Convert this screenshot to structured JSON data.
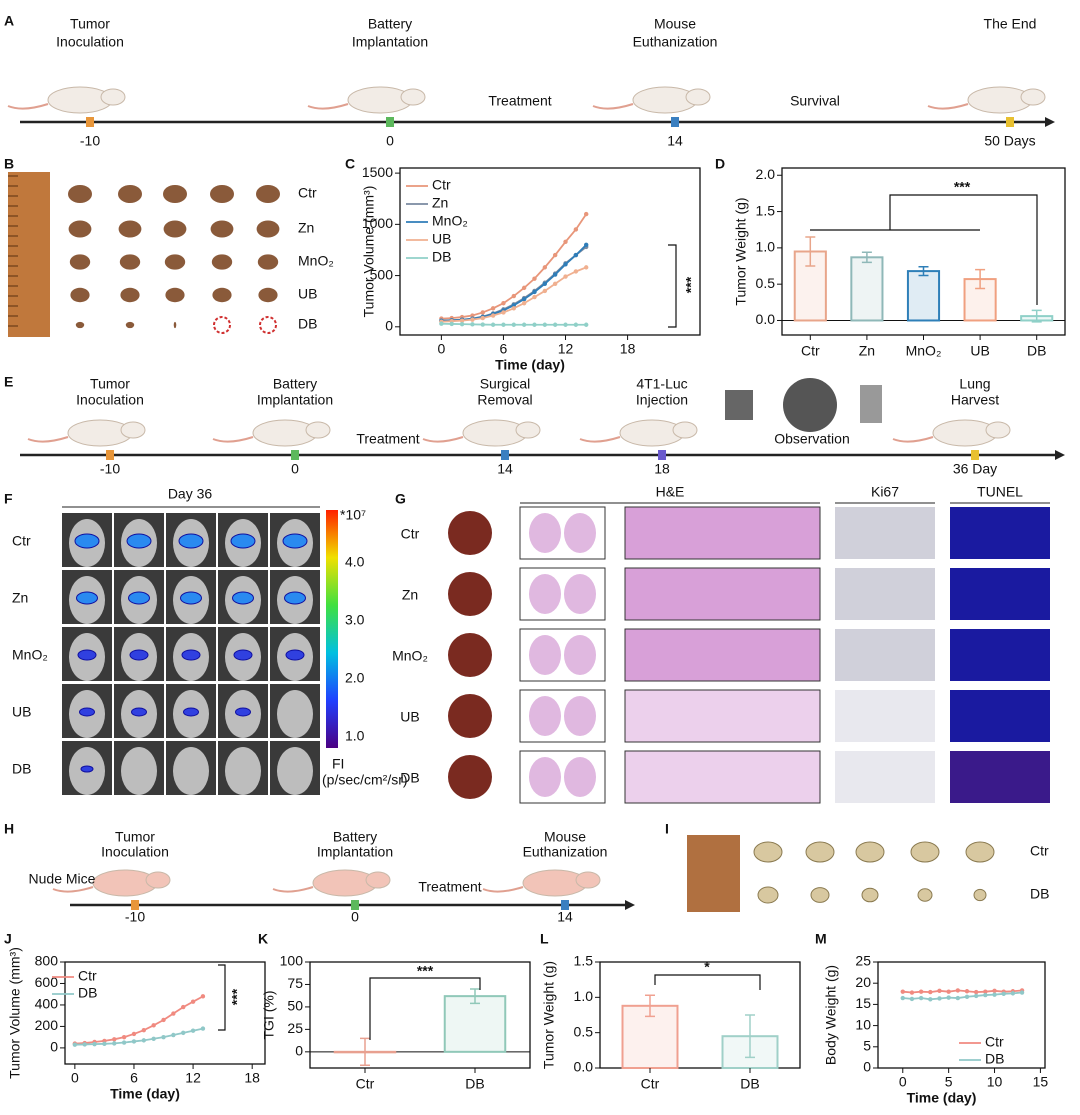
{
  "panels": {
    "A": {
      "letter": "A",
      "events": [
        {
          "title": [
            "Tumor",
            "Inoculation"
          ],
          "tick": "-10"
        },
        {
          "title": [
            "Battery",
            "Implantation"
          ],
          "tick": "0"
        },
        {
          "title": [
            "Mouse",
            "Euthanization"
          ],
          "tick": "14"
        },
        {
          "title": [
            "The End"
          ],
          "tick": "50 Days"
        }
      ],
      "phases": [
        "Treatment",
        "Survival"
      ]
    },
    "B": {
      "letter": "B",
      "rows": [
        "Ctr",
        "Zn",
        "MnO₂",
        "UB",
        "DB"
      ]
    },
    "E": {
      "letter": "E",
      "events": [
        {
          "title": [
            "Tumor",
            "Inoculation"
          ],
          "tick": "-10"
        },
        {
          "title": [
            "Battery",
            "Implantation"
          ],
          "tick": "0"
        },
        {
          "title": [
            "Surgical",
            "Removal"
          ],
          "tick": "14"
        },
        {
          "title": [
            "4T1-Luc",
            "Injection"
          ],
          "tick": "18"
        },
        {
          "title": [
            "Lung",
            "Harvest"
          ],
          "tick": "36 Day"
        }
      ],
      "phases": [
        "Treatment",
        "Observation"
      ]
    },
    "F": {
      "letter": "F",
      "title": "Day 36",
      "rows": [
        "Ctr",
        "Zn",
        "MnO₂",
        "UB",
        "DB"
      ],
      "colorbar": {
        "exponent": "*10⁷",
        "ticks": [
          "4.0",
          "3.0",
          "2.0",
          "1.0"
        ],
        "label": "FI",
        "unit": "(p/sec/cm²/sr)"
      }
    },
    "G": {
      "letter": "G",
      "columns": [
        "H&E",
        "Ki67",
        "TUNEL"
      ],
      "rows": [
        "Ctr",
        "Zn",
        "MnO₂",
        "UB",
        "DB"
      ]
    },
    "H": {
      "letter": "H",
      "subject": "Nude Mice",
      "events": [
        {
          "title": [
            "Tumor",
            "Inoculation"
          ],
          "tick": "-10"
        },
        {
          "title": [
            "Battery",
            "Implantation"
          ],
          "tick": "0"
        },
        {
          "title": [
            "Mouse",
            "Euthanization"
          ],
          "tick": "14"
        }
      ],
      "phases": [
        "Treatment"
      ]
    },
    "I": {
      "letter": "I",
      "rows": [
        "Ctr",
        "DB"
      ]
    }
  },
  "chart_data": [
    {
      "panel": "C",
      "type": "line",
      "xlabel": "Time (day)",
      "ylabel": "Tumor Volume (mm³)",
      "x": [
        0,
        1,
        2,
        3,
        4,
        5,
        6,
        7,
        8,
        9,
        10,
        11,
        12,
        13,
        14
      ],
      "series": [
        {
          "name": "Ctr",
          "color": "#e8967a",
          "values": [
            80,
            85,
            95,
            110,
            140,
            180,
            230,
            300,
            380,
            470,
            580,
            700,
            830,
            950,
            1100
          ]
        },
        {
          "name": "Zn",
          "color": "#7a8aa0",
          "values": [
            60,
            65,
            70,
            80,
            100,
            130,
            170,
            220,
            280,
            350,
            430,
            520,
            620,
            700,
            780
          ]
        },
        {
          "name": "MnO₂",
          "color": "#2f7db8",
          "values": [
            60,
            62,
            68,
            78,
            95,
            125,
            160,
            210,
            270,
            340,
            420,
            510,
            610,
            700,
            800
          ]
        },
        {
          "name": "UB",
          "color": "#f0b090",
          "values": [
            50,
            55,
            60,
            70,
            85,
            110,
            140,
            180,
            230,
            290,
            350,
            420,
            490,
            540,
            580
          ]
        },
        {
          "name": "DB",
          "color": "#90d0c8",
          "values": [
            30,
            28,
            26,
            24,
            22,
            20,
            20,
            20,
            20,
            20,
            20,
            20,
            20,
            20,
            20
          ]
        }
      ],
      "xlim": [
        -4,
        25
      ],
      "xticks": [
        0,
        6,
        12,
        18
      ],
      "ylim": [
        -80,
        1550
      ],
      "yticks": [
        0,
        500,
        1000,
        1500
      ],
      "annotation": "***"
    },
    {
      "panel": "D",
      "type": "bar",
      "ylabel": "Tumor Weight (g)",
      "categories": [
        "Ctr",
        "Zn",
        "MnO₂",
        "UB",
        "DB"
      ],
      "values": [
        0.95,
        0.87,
        0.68,
        0.57,
        0.06
      ],
      "errors": [
        0.2,
        0.07,
        0.06,
        0.13,
        0.08
      ],
      "colors": [
        "#e8a58a",
        "#8fb8b8",
        "#2e7fb8",
        "#f0a080",
        "#8fd0c8"
      ],
      "ylim": [
        -0.2,
        2.1
      ],
      "yticks": [
        {
          "value": 0,
          "label": "0.0"
        },
        0.5,
        {
          "value": 1,
          "label": "1.0"
        },
        1.5,
        {
          "value": 2,
          "label": "2.0"
        }
      ],
      "annotation": "***"
    },
    {
      "panel": "J",
      "type": "line",
      "xlabel": "Time (day)",
      "ylabel": "Tumor Volume (mm³)",
      "x": [
        0,
        1,
        2,
        3,
        4,
        5,
        6,
        7,
        8,
        9,
        10,
        11,
        12,
        13
      ],
      "series": [
        {
          "name": "Ctr",
          "color": "#f08a80",
          "values": [
            40,
            45,
            55,
            65,
            80,
            100,
            130,
            165,
            210,
            260,
            320,
            380,
            430,
            480
          ]
        },
        {
          "name": "DB",
          "color": "#90c8c8",
          "values": [
            30,
            32,
            35,
            38,
            42,
            50,
            60,
            70,
            85,
            100,
            120,
            140,
            160,
            180
          ]
        }
      ],
      "xlim": [
        -1,
        19.3
      ],
      "xticks": [
        0,
        6,
        12,
        18
      ],
      "ylim": [
        -150,
        800
      ],
      "yticks": [
        0,
        200,
        400,
        600,
        800
      ],
      "annotation": "***"
    },
    {
      "panel": "K",
      "type": "bar",
      "ylabel": "TGI (%)",
      "categories": [
        "Ctr",
        "DB"
      ],
      "values": [
        0,
        62
      ],
      "errors": [
        15,
        8
      ],
      "colors": [
        "#e8a090",
        "#90c8b8"
      ],
      "ylim": [
        -18,
        100
      ],
      "yticks": [
        0,
        25,
        50,
        75,
        100
      ],
      "annotation": "***"
    },
    {
      "panel": "L",
      "type": "bar",
      "ylabel": "Tumor Weight (g)",
      "categories": [
        "Ctr",
        "DB"
      ],
      "values": [
        0.88,
        0.45
      ],
      "errors": [
        0.15,
        0.3
      ],
      "colors": [
        "#f0a090",
        "#a0d0c8"
      ],
      "ylim": [
        0,
        1.5
      ],
      "yticks": [
        {
          "value": 0,
          "label": "0.0"
        },
        0.5,
        {
          "value": 1,
          "label": "1.0"
        },
        1.5
      ],
      "annotation": "*"
    },
    {
      "panel": "M",
      "type": "line",
      "xlabel": "Time (day)",
      "ylabel": "Body Weight (g)",
      "x": [
        0,
        1,
        2,
        3,
        4,
        5,
        6,
        7,
        8,
        9,
        10,
        11,
        12,
        13
      ],
      "series": [
        {
          "name": "Ctr",
          "color": "#f08a80",
          "values": [
            18,
            17.8,
            18,
            17.9,
            18.2,
            18,
            18.3,
            18.1,
            17.9,
            18,
            18.2,
            18,
            18.1,
            18.3
          ]
        },
        {
          "name": "DB",
          "color": "#90c8c8",
          "values": [
            16.5,
            16.3,
            16.5,
            16.2,
            16.4,
            16.6,
            16.5,
            16.8,
            17,
            17.2,
            17.3,
            17.5,
            17.6,
            17.8
          ]
        }
      ],
      "xlim": [
        -2.7,
        15.5
      ],
      "xticks": [
        0,
        5,
        10,
        15
      ],
      "ylim": [
        0,
        25
      ],
      "yticks": [
        0,
        5,
        10,
        15,
        20,
        25
      ]
    }
  ]
}
